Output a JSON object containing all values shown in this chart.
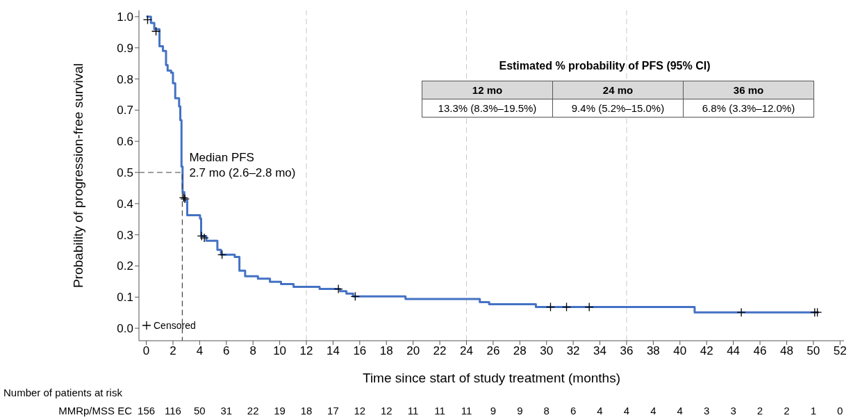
{
  "chart_data": {
    "type": "step",
    "xlabel": "Time since start of study treatment (months)",
    "ylabel": "Probability of progression-free survival",
    "xlim": [
      -0.55,
      52.3
    ],
    "xticks": [
      0,
      2,
      4,
      6,
      8,
      10,
      12,
      14,
      16,
      18,
      20,
      22,
      24,
      26,
      28,
      30,
      32,
      34,
      36,
      38,
      40,
      42,
      44,
      46,
      48,
      50,
      52
    ],
    "ylim": [
      -0.04,
      1.02
    ],
    "yticks": [
      {
        "value": 0,
        "label": "0.0"
      },
      {
        "value": 0.1,
        "label": "0.1"
      },
      {
        "value": 0.2,
        "label": "0.2"
      },
      {
        "value": 0.3,
        "label": "0.3"
      },
      {
        "value": 0.4,
        "label": "0.4"
      },
      {
        "value": 0.5,
        "label": "0.5"
      },
      {
        "value": 0.6,
        "label": "0.6"
      },
      {
        "value": 0.7,
        "label": "0.7"
      },
      {
        "value": 0.8,
        "label": "0.8"
      },
      {
        "value": 0.9,
        "label": "0.9"
      },
      {
        "value": 1,
        "label": "1.0"
      }
    ],
    "legend": "bottom left",
    "series": [
      {
        "color": "#4472c4",
        "x": [
          0,
          0.35,
          0.6,
          0.99,
          1.25,
          1.48,
          1.6,
          1.86,
          2.0,
          2.17,
          2.46,
          2.55,
          2.64,
          2.72,
          2.85,
          3.07,
          4.03,
          4.11,
          4.5,
          5.33,
          5.6,
          6.63,
          6.98,
          7.41,
          8.37,
          9.27,
          10.1,
          11.04,
          12.99,
          14.53,
          15.0,
          15.5,
          19.43,
          25.0,
          25.7,
          29.2,
          41.1,
          50.4
        ],
        "values": [
          1.0,
          0.98,
          0.96,
          0.905,
          0.89,
          0.845,
          0.827,
          0.82,
          0.786,
          0.738,
          0.712,
          0.668,
          0.519,
          0.437,
          0.41,
          0.363,
          0.352,
          0.296,
          0.281,
          0.252,
          0.236,
          0.229,
          0.185,
          0.167,
          0.159,
          0.149,
          0.142,
          0.133,
          0.126,
          0.119,
          0.111,
          0.102,
          0.094,
          0.084,
          0.077,
          0.068,
          0.051,
          0.051
        ]
      },
      {
        "type": "scatter",
        "name": "Censored",
        "color": "#000000",
        "marker": "cross",
        "x": [
          0.1,
          0.73,
          2.8,
          2.9,
          4.15,
          4.35,
          5.68,
          14.4,
          15.66,
          30.3,
          31.5,
          33.2,
          44.6,
          50.1,
          50.3
        ],
        "values": [
          0.99,
          0.953,
          0.419,
          0.415,
          0.296,
          0.29,
          0.236,
          0.126,
          0.102,
          0.068,
          0.068,
          0.068,
          0.051,
          0.051,
          0.051
        ]
      },
      {
        "type": "line",
        "color": "#404040",
        "line_style": "dashed",
        "x": [
          -0.55,
          2.7,
          2.7
        ],
        "values": [
          0.5,
          0.5,
          -0.04
        ]
      }
    ],
    "ref_lines": [
      {
        "axis": "x",
        "value": 12,
        "color": "#c8c8c8",
        "line_style": "dashed"
      },
      {
        "axis": "x",
        "value": 24,
        "color": "#c8c8c8",
        "line_style": "dashed"
      },
      {
        "axis": "x",
        "value": 36,
        "color": "#c8c8c8",
        "line_style": "dashed"
      }
    ],
    "annotations": [
      {
        "text": "Median PFS\n2.7 mo (2.6–2.8 mo)",
        "x": 2.7,
        "y": 0.5
      },
      "Estimated % probability of PFS (95% CI)",
      "12 mo",
      "24 mo",
      "36 mo",
      "13.3% (8.3%–19.5%)",
      "9.4% (5.2%–15.0%)",
      "6.8% (3.3%–12.0%)",
      "Number of patients at risk",
      "MMRp/MSS EC",
      "156 116 50 31 22 19 18 17 12 12 11 11 11 9 9 8 6 4 4 4 4 3 3 2 2 1 0"
    ]
  }
}
